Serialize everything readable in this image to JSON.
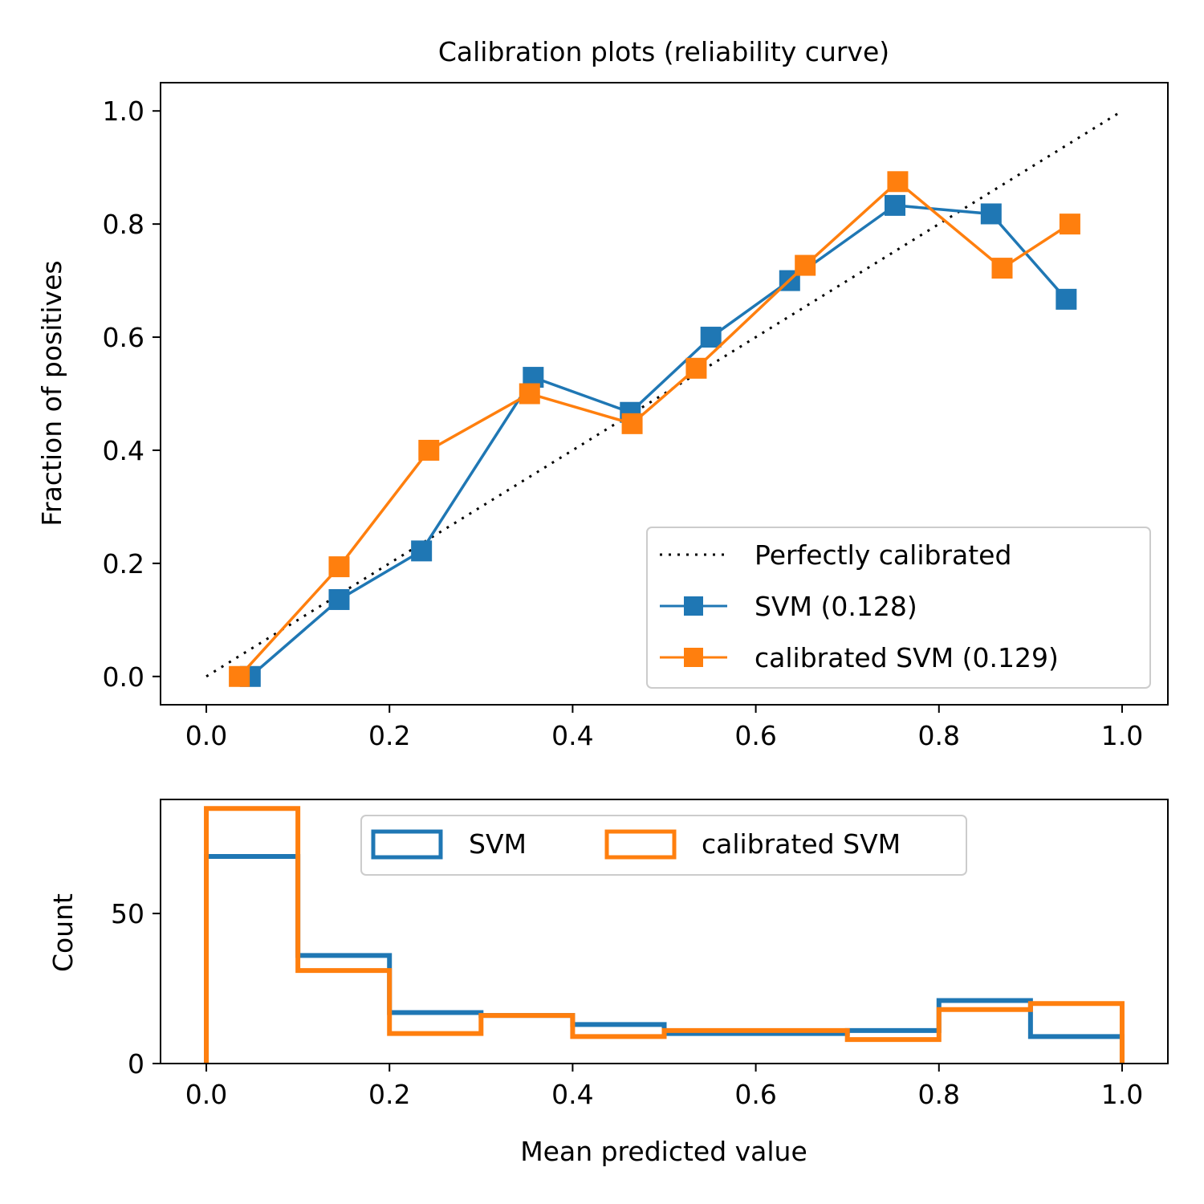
{
  "chart_data": [
    {
      "type": "line",
      "title": "Calibration plots  (reliability curve)",
      "xlabel": "",
      "ylabel": "Fraction of positives",
      "xlim": [
        -0.05,
        1.05
      ],
      "ylim": [
        -0.05,
        1.05
      ],
      "xticks": [
        "0.0",
        "0.2",
        "0.4",
        "0.6",
        "0.8",
        "1.0"
      ],
      "yticks": [
        "0.0",
        "0.2",
        "0.4",
        "0.6",
        "0.8",
        "1.0"
      ],
      "legend": "lower-right",
      "series": [
        {
          "name": "Perfectly calibrated",
          "color": "#000000",
          "style": "dotted",
          "x": [
            0,
            1
          ],
          "y": [
            0,
            1
          ]
        },
        {
          "name": "SVM (0.128)",
          "color": "#1f77b4",
          "marker": "square",
          "x": [
            0.048,
            0.145,
            0.235,
            0.357,
            0.463,
            0.551,
            0.637,
            0.752,
            0.857,
            0.939
          ],
          "y": [
            0.0,
            0.136,
            0.222,
            0.529,
            0.467,
            0.6,
            0.7,
            0.833,
            0.818,
            0.667
          ]
        },
        {
          "name": "calibrated SVM (0.129)",
          "color": "#ff7f0e",
          "marker": "square",
          "x": [
            0.036,
            0.145,
            0.243,
            0.353,
            0.465,
            0.535,
            0.654,
            0.755,
            0.869,
            0.943
          ],
          "y": [
            0.0,
            0.194,
            0.4,
            0.5,
            0.447,
            0.545,
            0.727,
            0.875,
            0.722,
            0.8
          ]
        }
      ]
    },
    {
      "type": "histogram",
      "xlabel": "Mean predicted value",
      "ylabel": "Count",
      "xlim": [
        -0.05,
        1.05
      ],
      "ylim": [
        0,
        88
      ],
      "xticks": [
        "0.0",
        "0.2",
        "0.4",
        "0.6",
        "0.8",
        "1.0"
      ],
      "yticks": [
        "0",
        "50"
      ],
      "legend": "upper-center",
      "bin_edges": [
        0.0,
        0.1,
        0.2,
        0.3,
        0.4,
        0.5,
        0.6,
        0.7,
        0.8,
        0.9,
        1.0
      ],
      "series": [
        {
          "name": "SVM",
          "color": "#1f77b4",
          "counts": [
            69,
            36,
            17,
            16,
            13,
            10,
            10,
            11,
            21,
            9
          ]
        },
        {
          "name": "calibrated SVM",
          "color": "#ff7f0e",
          "counts": [
            85,
            31,
            10,
            16,
            9,
            11,
            11,
            8,
            18,
            20
          ]
        }
      ]
    }
  ]
}
